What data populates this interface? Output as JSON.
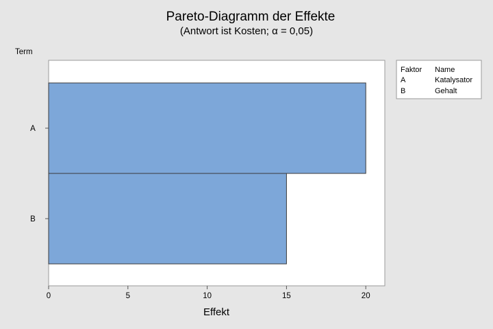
{
  "chart_data": {
    "type": "bar",
    "orientation": "horizontal",
    "title": "Pareto-Diagramm der Effekte",
    "subtitle": "(Antwort ist Kosten; α = 0,05)",
    "ylabel": "Term",
    "xlabel": "Effekt",
    "categories": [
      "A",
      "B"
    ],
    "values": [
      20,
      15
    ],
    "xlim": [
      0,
      21.2
    ],
    "xticks": [
      0,
      5,
      10,
      15,
      20
    ],
    "bar_color": "#7da7d9",
    "bar_edge_color": "#3a3a3a",
    "grid": false,
    "legend": {
      "placement": "right",
      "headers": [
        "Faktor",
        "Name"
      ],
      "rows": [
        [
          "A",
          "Katalysator"
        ],
        [
          "B",
          "Gehalt"
        ]
      ]
    }
  }
}
